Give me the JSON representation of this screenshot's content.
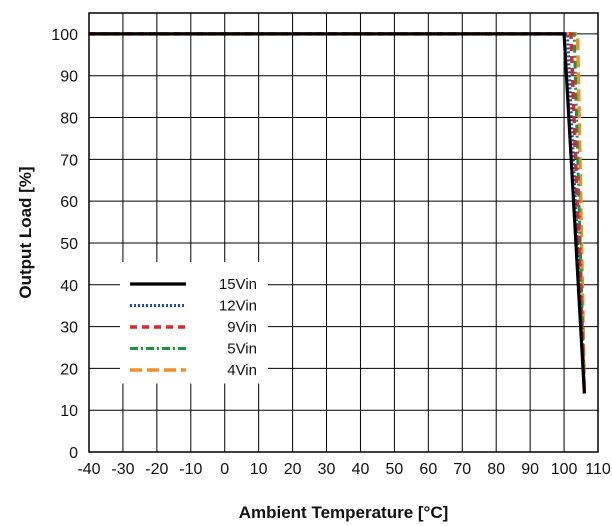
{
  "chart_data": {
    "type": "line",
    "xlabel": "Ambient Temperature [°C]",
    "ylabel": "Output Load [%]",
    "xlim": [
      -40,
      110
    ],
    "ylim": [
      0,
      105
    ],
    "xticks": [
      -40,
      -30,
      -20,
      -10,
      0,
      10,
      20,
      30,
      40,
      50,
      60,
      70,
      80,
      90,
      100,
      110
    ],
    "yticks": [
      0,
      10,
      20,
      30,
      40,
      50,
      60,
      70,
      80,
      90,
      100
    ],
    "grid": true,
    "legend_position": "bottom-left",
    "series": [
      {
        "name": "15Vin",
        "color": "#000000",
        "dash": "solid",
        "x": [
          -40,
          100,
          106
        ],
        "y": [
          100,
          100,
          14
        ]
      },
      {
        "name": "12Vin",
        "color": "#1f4ea8",
        "dash": "dotted",
        "x": [
          -40,
          101,
          106
        ],
        "y": [
          100,
          100,
          14
        ]
      },
      {
        "name": "9Vin",
        "color": "#e0242b",
        "dash": "dashed",
        "x": [
          -40,
          102,
          106
        ],
        "y": [
          100,
          100,
          14
        ]
      },
      {
        "name": "5Vin",
        "color": "#1a9641",
        "dash": "dashdot",
        "x": [
          -40,
          103,
          106
        ],
        "y": [
          100,
          100,
          14
        ]
      },
      {
        "name": "4Vin",
        "color": "#f28e2b",
        "dash": "longdash",
        "x": [
          -40,
          104,
          106
        ],
        "y": [
          100,
          100,
          14
        ]
      }
    ]
  }
}
